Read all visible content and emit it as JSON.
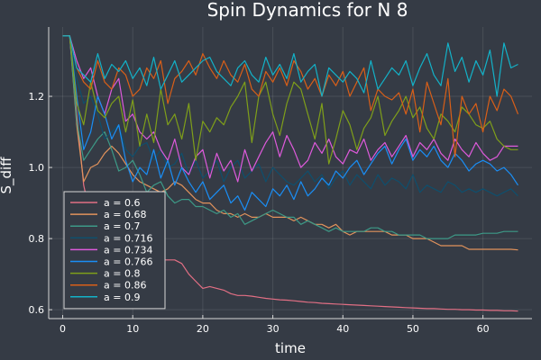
{
  "chart_data": {
    "type": "line",
    "title": "Spin Dynamics for N 8",
    "xlabel": "time",
    "ylabel": "S_diff",
    "xlim": [
      -2,
      67
    ],
    "ylim": [
      0.575,
      1.395
    ],
    "xticks": [
      0,
      10,
      20,
      30,
      40,
      50,
      60
    ],
    "yticks": [
      0.6,
      0.8,
      1.0,
      1.2
    ],
    "grid": true,
    "legend_position": "bottom-left",
    "x_start": 0,
    "x_step": 1,
    "series": [
      {
        "name": "a = 0.6",
        "color": "#e26f84",
        "values": [
          1.37,
          1.37,
          1.15,
          0.95,
          0.86,
          0.84,
          0.83,
          0.82,
          0.8,
          0.79,
          0.78,
          0.77,
          0.76,
          0.75,
          0.74,
          0.74,
          0.74,
          0.73,
          0.7,
          0.68,
          0.66,
          0.665,
          0.66,
          0.655,
          0.645,
          0.64,
          0.64,
          0.638,
          0.635,
          0.632,
          0.63,
          0.628,
          0.627,
          0.625,
          0.623,
          0.621,
          0.62,
          0.618,
          0.617,
          0.616,
          0.615,
          0.614,
          0.613,
          0.612,
          0.611,
          0.61,
          0.609,
          0.608,
          0.607,
          0.606,
          0.605,
          0.604,
          0.603,
          0.603,
          0.602,
          0.601,
          0.601,
          0.6,
          0.6,
          0.599,
          0.599,
          0.598,
          0.598,
          0.597,
          0.597,
          0.596
        ]
      },
      {
        "name": "a = 0.68",
        "color": "#e2935c",
        "values": [
          1.37,
          1.37,
          1.12,
          0.96,
          1.0,
          1.01,
          1.04,
          1.06,
          1.04,
          1.01,
          0.98,
          0.96,
          0.95,
          0.94,
          0.93,
          0.94,
          0.96,
          0.95,
          0.93,
          0.91,
          0.9,
          0.9,
          0.88,
          0.87,
          0.87,
          0.86,
          0.87,
          0.86,
          0.86,
          0.87,
          0.86,
          0.86,
          0.86,
          0.85,
          0.86,
          0.85,
          0.84,
          0.84,
          0.83,
          0.84,
          0.82,
          0.81,
          0.82,
          0.82,
          0.82,
          0.82,
          0.82,
          0.81,
          0.81,
          0.81,
          0.8,
          0.8,
          0.8,
          0.79,
          0.78,
          0.78,
          0.78,
          0.78,
          0.77,
          0.77,
          0.77,
          0.77,
          0.77,
          0.77,
          0.77,
          0.768
        ]
      },
      {
        "name": "a = 0.7",
        "color": "#3d9a87",
        "values": [
          1.37,
          1.37,
          1.13,
          1.02,
          1.05,
          1.08,
          1.1,
          1.05,
          0.99,
          1.0,
          1.02,
          0.98,
          0.93,
          0.95,
          0.96,
          0.92,
          0.9,
          0.91,
          0.91,
          0.89,
          0.89,
          0.88,
          0.87,
          0.88,
          0.86,
          0.87,
          0.84,
          0.85,
          0.86,
          0.87,
          0.88,
          0.87,
          0.86,
          0.86,
          0.84,
          0.85,
          0.84,
          0.83,
          0.82,
          0.83,
          0.82,
          0.82,
          0.82,
          0.82,
          0.83,
          0.83,
          0.82,
          0.82,
          0.81,
          0.81,
          0.81,
          0.81,
          0.8,
          0.8,
          0.8,
          0.8,
          0.81,
          0.81,
          0.81,
          0.81,
          0.815,
          0.815,
          0.815,
          0.82,
          0.82,
          0.82
        ]
      },
      {
        "name": "a = 0.716",
        "color": "#0f4f6d",
        "values": [
          1.37,
          1.37,
          1.25,
          1.18,
          1.2,
          1.15,
          1.08,
          1.1,
          1.12,
          1.05,
          1.03,
          1.06,
          1.07,
          1.02,
          1.05,
          1.0,
          1.01,
          1.04,
          0.98,
          1.02,
          0.97,
          0.99,
          1.02,
          0.96,
          1.0,
          1.02,
          0.97,
          0.99,
          1.01,
          0.96,
          1.0,
          0.98,
          0.96,
          0.95,
          0.97,
          0.99,
          0.96,
          0.98,
          0.94,
          0.97,
          0.99,
          0.95,
          0.98,
          0.96,
          0.94,
          0.98,
          0.95,
          0.97,
          0.96,
          0.94,
          0.98,
          0.93,
          0.95,
          0.94,
          0.93,
          0.96,
          0.95,
          0.93,
          0.94,
          0.93,
          0.94,
          0.93,
          0.92,
          0.93,
          0.94,
          0.92
        ]
      },
      {
        "name": "a = 0.734",
        "color": "#de5adb",
        "values": [
          1.37,
          1.37,
          1.3,
          1.25,
          1.28,
          1.2,
          1.15,
          1.22,
          1.25,
          1.13,
          1.15,
          1.1,
          1.08,
          1.1,
          1.05,
          1.02,
          1.08,
          1.0,
          0.98,
          1.03,
          1.05,
          0.97,
          1.04,
          0.99,
          1.02,
          0.96,
          1.05,
          0.99,
          1.03,
          1.07,
          1.1,
          1.03,
          1.09,
          1.05,
          1.0,
          1.02,
          1.07,
          1.04,
          1.08,
          1.03,
          1.01,
          1.05,
          1.04,
          1.08,
          1.02,
          1.05,
          1.07,
          1.03,
          1.06,
          1.09,
          1.03,
          1.07,
          1.05,
          1.08,
          1.04,
          1.02,
          1.08,
          1.05,
          1.03,
          1.07,
          1.04,
          1.02,
          1.03,
          1.06,
          1.06,
          1.06
        ]
      },
      {
        "name": "a = 0.766",
        "color": "#1a8ef5",
        "values": [
          1.37,
          1.37,
          1.2,
          1.05,
          1.1,
          1.2,
          1.15,
          1.08,
          1.12,
          1.02,
          0.96,
          1.0,
          0.98,
          1.05,
          0.97,
          1.02,
          0.95,
          1.0,
          0.96,
          0.93,
          0.96,
          0.91,
          0.93,
          0.95,
          0.9,
          0.92,
          0.88,
          0.93,
          0.91,
          0.89,
          0.94,
          0.92,
          0.95,
          0.91,
          0.96,
          0.92,
          0.94,
          0.97,
          0.95,
          0.99,
          0.97,
          1.0,
          1.02,
          0.98,
          1.01,
          1.04,
          1.06,
          1.01,
          1.05,
          1.08,
          1.02,
          1.05,
          1.03,
          1.06,
          1.02,
          1.0,
          1.04,
          1.02,
          0.99,
          1.01,
          1.02,
          1.01,
          0.99,
          1.0,
          0.98,
          0.95
        ]
      },
      {
        "name": "a = 0.8",
        "color": "#7f9f1a",
        "values": [
          1.37,
          1.37,
          1.18,
          1.12,
          1.24,
          1.16,
          1.14,
          1.18,
          1.2,
          1.1,
          1.19,
          1.06,
          1.15,
          1.07,
          1.22,
          1.12,
          1.15,
          1.08,
          1.18,
          1.02,
          1.13,
          1.1,
          1.14,
          1.12,
          1.17,
          1.2,
          1.24,
          1.07,
          1.2,
          1.24,
          1.15,
          1.09,
          1.18,
          1.24,
          1.22,
          1.15,
          1.08,
          1.18,
          1.01,
          1.08,
          1.16,
          1.12,
          1.05,
          1.11,
          1.14,
          1.2,
          1.09,
          1.13,
          1.16,
          1.2,
          1.14,
          1.17,
          1.11,
          1.08,
          1.15,
          1.13,
          1.1,
          1.17,
          1.15,
          1.12,
          1.11,
          1.13,
          1.08,
          1.06,
          1.05,
          1.05
        ]
      },
      {
        "name": "a = 0.86",
        "color": "#d95f18",
        "values": [
          1.37,
          1.37,
          1.28,
          1.24,
          1.22,
          1.3,
          1.24,
          1.22,
          1.28,
          1.26,
          1.2,
          1.22,
          1.28,
          1.25,
          1.3,
          1.18,
          1.25,
          1.27,
          1.3,
          1.26,
          1.32,
          1.28,
          1.25,
          1.3,
          1.26,
          1.24,
          1.29,
          1.22,
          1.2,
          1.27,
          1.24,
          1.28,
          1.23,
          1.3,
          1.27,
          1.22,
          1.25,
          1.2,
          1.26,
          1.23,
          1.27,
          1.2,
          1.24,
          1.28,
          1.16,
          1.22,
          1.2,
          1.19,
          1.21,
          1.15,
          1.22,
          1.1,
          1.24,
          1.18,
          1.12,
          1.25,
          1.03,
          1.2,
          1.15,
          1.18,
          1.1,
          1.2,
          1.16,
          1.22,
          1.2,
          1.15
        ]
      },
      {
        "name": "a = 0.9",
        "color": "#13b2c8",
        "values": [
          1.37,
          1.37,
          1.28,
          1.26,
          1.24,
          1.32,
          1.25,
          1.29,
          1.27,
          1.3,
          1.25,
          1.28,
          1.23,
          1.31,
          1.22,
          1.26,
          1.3,
          1.24,
          1.26,
          1.28,
          1.3,
          1.31,
          1.27,
          1.25,
          1.23,
          1.28,
          1.3,
          1.26,
          1.24,
          1.31,
          1.26,
          1.29,
          1.25,
          1.32,
          1.24,
          1.27,
          1.29,
          1.2,
          1.28,
          1.26,
          1.24,
          1.27,
          1.25,
          1.21,
          1.3,
          1.22,
          1.25,
          1.28,
          1.26,
          1.3,
          1.23,
          1.28,
          1.32,
          1.26,
          1.23,
          1.35,
          1.27,
          1.31,
          1.24,
          1.3,
          1.26,
          1.33,
          1.2,
          1.35,
          1.28,
          1.29
        ]
      }
    ]
  }
}
